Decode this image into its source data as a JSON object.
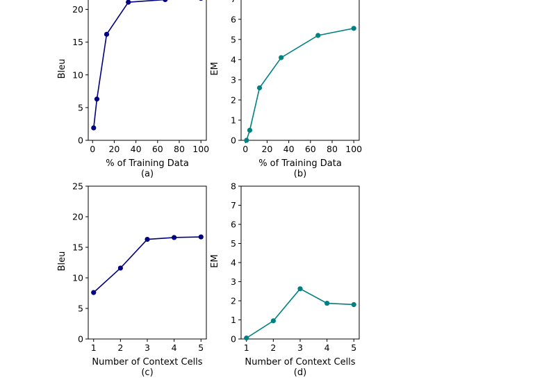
{
  "series_colors": {
    "bleu": "#000080",
    "em": "#008080"
  },
  "chart_data": [
    {
      "id": "a",
      "type": "line",
      "caption": "(a)",
      "xlabel": "% of Training Data",
      "ylabel": "Bleu",
      "x": [
        1,
        4,
        13,
        33,
        67,
        100
      ],
      "values": [
        1.9,
        6.3,
        16.2,
        21.1,
        21.5,
        21.7
      ],
      "xlim": [
        -4,
        105
      ],
      "ylim": [
        0,
        22.5
      ],
      "xticks": [
        0,
        20,
        40,
        60,
        80,
        100
      ],
      "yticks": [
        0,
        5,
        10,
        15,
        20
      ],
      "grid": false,
      "color": "#000080"
    },
    {
      "id": "b",
      "type": "line",
      "caption": "(b)",
      "xlabel": "% of Training Data",
      "ylabel": "EM",
      "x": [
        1,
        4,
        13,
        33,
        67,
        100
      ],
      "values": [
        0.0,
        0.5,
        2.6,
        4.1,
        5.2,
        5.55
      ],
      "xlim": [
        -4,
        105
      ],
      "ylim": [
        0,
        7.3
      ],
      "xticks": [
        0,
        20,
        40,
        60,
        80,
        100
      ],
      "yticks": [
        0,
        1,
        2,
        3,
        4,
        5,
        6,
        7
      ],
      "grid": false,
      "color": "#008080"
    },
    {
      "id": "c",
      "type": "line",
      "caption": "(c)",
      "xlabel": "Number of Context Cells",
      "ylabel": "Bleu",
      "x": [
        1,
        2,
        3,
        4,
        5
      ],
      "values": [
        7.6,
        11.6,
        16.3,
        16.6,
        16.7
      ],
      "xlim": [
        0.8,
        5.2
      ],
      "ylim": [
        0,
        25
      ],
      "xticks": [
        1,
        2,
        3,
        4,
        5
      ],
      "yticks": [
        0,
        5,
        10,
        15,
        20,
        25
      ],
      "grid": false,
      "color": "#000080"
    },
    {
      "id": "d",
      "type": "line",
      "caption": "(d)",
      "xlabel": "Number of Context Cells",
      "ylabel": "EM",
      "x": [
        1,
        2,
        3,
        4,
        5
      ],
      "values": [
        0.05,
        0.95,
        2.63,
        1.87,
        1.8
      ],
      "xlim": [
        0.8,
        5.2
      ],
      "ylim": [
        0,
        8
      ],
      "xticks": [
        1,
        2,
        3,
        4,
        5
      ],
      "yticks": [
        0,
        1,
        2,
        3,
        4,
        5,
        6,
        7,
        8
      ],
      "grid": false,
      "color": "#008080"
    }
  ]
}
